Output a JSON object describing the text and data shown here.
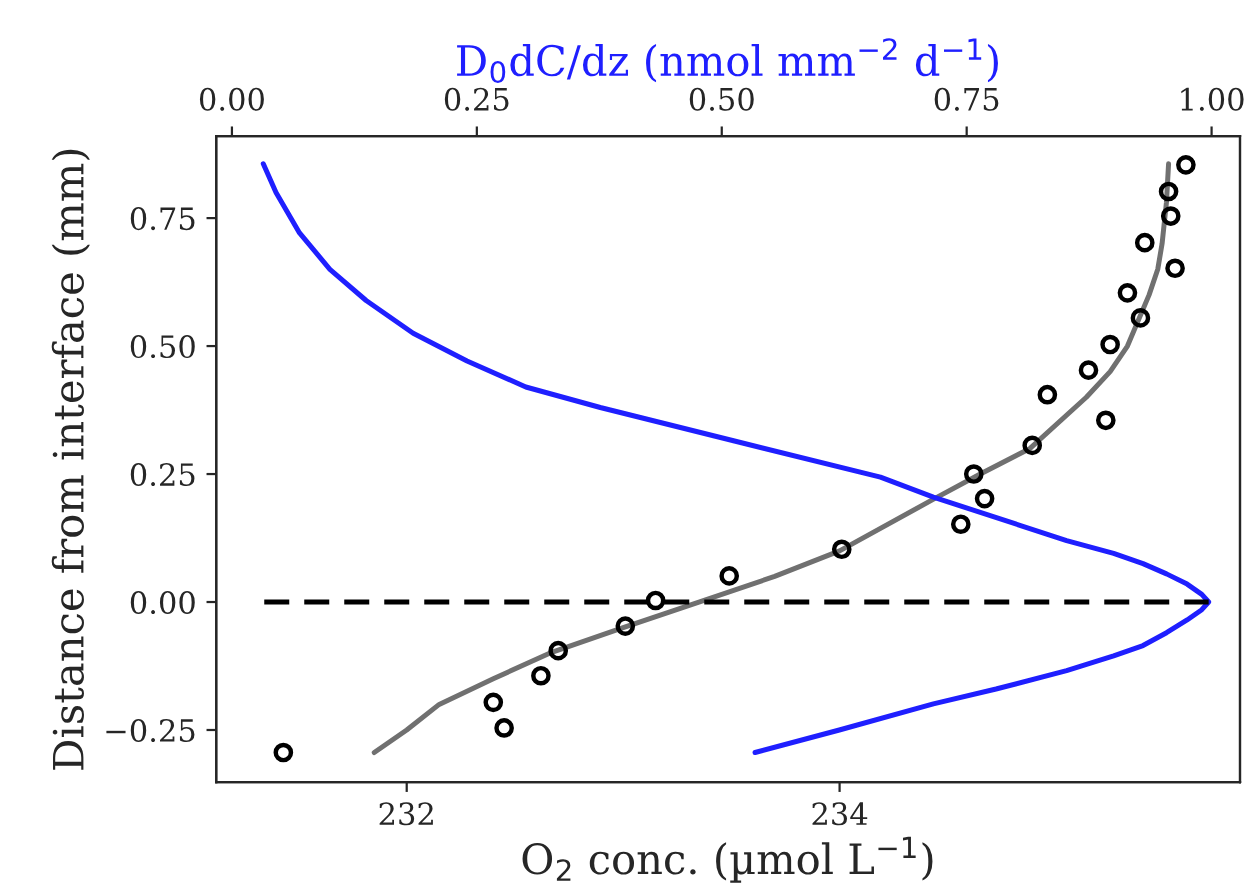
{
  "chart_data": {
    "type": "scatter",
    "xlabel": "O$_{2}$ conc. (µmol L$^{−1}$)",
    "ylabel": "Distance from interface (mm)",
    "x2label": "D$_{0}$dC/dz (nmol mm$^{−2}$ d$^{−1}$)",
    "xlim": [
      231.12,
      235.85
    ],
    "xticks": [
      232,
      234
    ],
    "x2lim": [
      -0.016,
      1.029
    ],
    "x2ticks": [
      {
        "value": 0,
        "label": "0.00"
      },
      {
        "value": 0.25,
        "label": "0.25"
      },
      {
        "value": 0.5,
        "label": "0.50"
      },
      {
        "value": 0.75,
        "label": "0.75"
      },
      {
        "value": 1,
        "label": "1.00"
      }
    ],
    "ylim": [
      -0.352,
      0.91
    ],
    "yticks": [
      {
        "value": -0.25,
        "label": "−0.25"
      },
      {
        "value": 0,
        "label": "0.00"
      },
      {
        "value": 0.25,
        "label": "0.25"
      },
      {
        "value": 0.5,
        "label": "0.50"
      },
      {
        "value": 0.75,
        "label": "0.75"
      }
    ],
    "grid": false,
    "legend": false,
    "series": [
      {
        "marker": "circle",
        "color": "#000000",
        "x": [
          235.6,
          235.52,
          235.53,
          235.41,
          235.55,
          235.33,
          235.39,
          235.25,
          235.15,
          234.96,
          235.23,
          234.89,
          234.62,
          234.67,
          234.56,
          234.01,
          233.49,
          233.15,
          233.01,
          232.7,
          232.62,
          232.4,
          232.45,
          231.43
        ],
        "values": [
          0.854,
          0.802,
          0.754,
          0.702,
          0.652,
          0.604,
          0.555,
          0.503,
          0.453,
          0.405,
          0.355,
          0.306,
          0.25,
          0.202,
          0.152,
          0.103,
          0.051,
          0.003,
          -0.047,
          -0.095,
          -0.144,
          -0.196,
          -0.246,
          -0.294
        ]
      },
      {
        "type": "line",
        "line_style": "solid",
        "color": "#707070",
        "x": [
          231.85,
          232.0,
          232.15,
          232.4,
          232.66,
          233.0,
          233.35,
          233.7,
          234.0,
          234.43,
          234.65,
          234.88,
          235.14,
          235.25,
          235.33,
          235.43,
          235.47,
          235.49,
          235.51,
          235.52
        ],
        "values": [
          -0.294,
          -0.25,
          -0.2,
          -0.15,
          -0.1,
          -0.05,
          0.0,
          0.05,
          0.1,
          0.2,
          0.25,
          0.3,
          0.4,
          0.45,
          0.5,
          0.6,
          0.65,
          0.7,
          0.78,
          0.856
        ]
      },
      {
        "type": "line",
        "axis": "x2",
        "line_style": "solid",
        "color": "#1f1fff",
        "x": [
          0.032,
          0.045,
          0.069,
          0.1,
          0.137,
          0.185,
          0.24,
          0.3,
          0.376,
          0.512,
          0.662,
          0.716,
          0.852,
          0.9,
          0.93,
          0.954,
          0.975,
          0.99,
          0.997,
          0.99,
          0.975,
          0.954,
          0.93,
          0.9,
          0.852,
          0.78,
          0.716,
          0.62,
          0.534
        ],
        "values": [
          0.856,
          0.8,
          0.721,
          0.65,
          0.589,
          0.525,
          0.471,
          0.42,
          0.38,
          0.315,
          0.244,
          0.205,
          0.12,
          0.095,
          0.075,
          0.055,
          0.035,
          0.015,
          0.0,
          -0.015,
          -0.035,
          -0.06,
          -0.085,
          -0.105,
          -0.134,
          -0.17,
          -0.199,
          -0.25,
          -0.294
        ]
      },
      {
        "type": "line",
        "axis": "x2",
        "line_style": "dashed",
        "color": "#000000",
        "x": [
          0.033,
          0.997
        ],
        "values": [
          0,
          0
        ]
      }
    ]
  }
}
